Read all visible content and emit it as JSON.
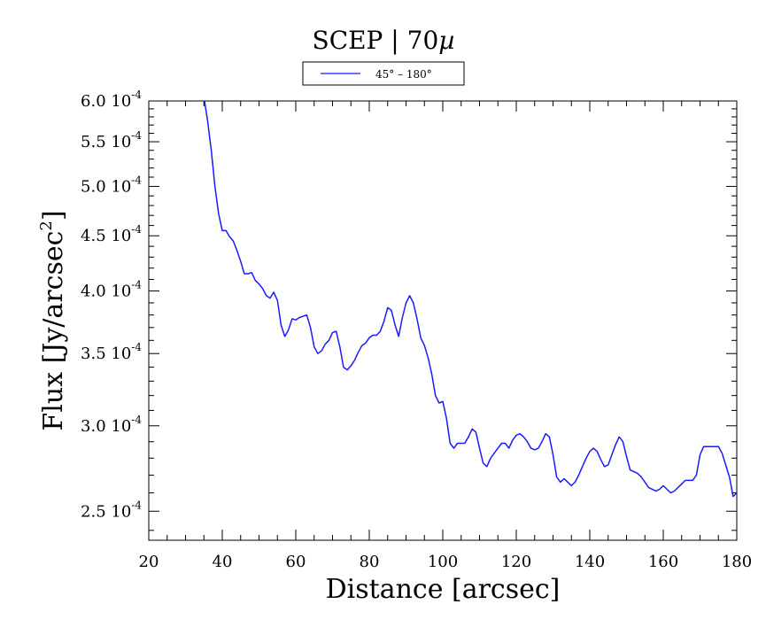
{
  "chart_data": {
    "type": "line",
    "title": "SCEP | 70",
    "title_symbol": "µ",
    "xlabel": "Distance [arcsec]",
    "ylabel": "Flux [Jy/arcsec",
    "ylabel_sup": "2",
    "ylabel_close": "]",
    "xlim": [
      20,
      180
    ],
    "ylim": [
      0.000235,
      0.0006
    ],
    "yscale": "log",
    "x_ticks": [
      20,
      40,
      60,
      80,
      100,
      120,
      140,
      160,
      180
    ],
    "x_tick_labels": [
      "20",
      "40",
      "60",
      "80",
      "100",
      "120",
      "140",
      "160",
      "180"
    ],
    "y_ticks": [
      {
        "value": 0.00025,
        "mantissa": "2.5 10",
        "exponent": "-4"
      },
      {
        "value": 0.0003,
        "mantissa": "3.0 10",
        "exponent": "-4"
      },
      {
        "value": 0.00035,
        "mantissa": "3.5 10",
        "exponent": "-4"
      },
      {
        "value": 0.0004,
        "mantissa": "4.0 10",
        "exponent": "-4"
      },
      {
        "value": 0.00045,
        "mantissa": "4.5 10",
        "exponent": "-4"
      },
      {
        "value": 0.0005,
        "mantissa": "5.0 10",
        "exponent": "-4"
      },
      {
        "value": 0.00055,
        "mantissa": "5.5 10",
        "exponent": "-4"
      },
      {
        "value": 0.0006,
        "mantissa": "6.0 10",
        "exponent": "-4"
      }
    ],
    "legend": {
      "position": "top-center",
      "label": "45° – 180°"
    },
    "series": [
      {
        "name": "45° – 180°",
        "color": "#1a1aff",
        "x": [
          35,
          36,
          37,
          38,
          39,
          40,
          41,
          42,
          43,
          44,
          45,
          46,
          47,
          48,
          49,
          50,
          51,
          52,
          53,
          54,
          55,
          56,
          57,
          58,
          59,
          60,
          61,
          62,
          63,
          64,
          65,
          66,
          67,
          68,
          69,
          70,
          71,
          72,
          73,
          74,
          75,
          76,
          77,
          78,
          79,
          80,
          81,
          82,
          83,
          84,
          85,
          86,
          87,
          88,
          89,
          90,
          91,
          92,
          93,
          94,
          95,
          96,
          97,
          98,
          99,
          100,
          101,
          102,
          103,
          104,
          105,
          106,
          107,
          108,
          109,
          110,
          111,
          112,
          113,
          114,
          115,
          116,
          117,
          118,
          119,
          120,
          121,
          122,
          123,
          124,
          125,
          126,
          127,
          128,
          129,
          130,
          131,
          132,
          133,
          134,
          135,
          136,
          137,
          138,
          139,
          140,
          141,
          142,
          143,
          144,
          145,
          146,
          147,
          148,
          149,
          150,
          151,
          152,
          153,
          154,
          155,
          156,
          157,
          158,
          159,
          160,
          161,
          162,
          163,
          164,
          165,
          166,
          167,
          168,
          169,
          170,
          171,
          172,
          173,
          174,
          175,
          176,
          177,
          178,
          179,
          180
        ],
        "values": [
          0.000605,
          0.000575,
          0.00054,
          0.0005,
          0.000472,
          0.000455,
          0.000455,
          0.000449,
          0.000445,
          0.000436,
          0.000426,
          0.000415,
          0.000415,
          0.000416,
          0.000409,
          0.000406,
          0.000402,
          0.000396,
          0.000394,
          0.000399,
          0.000392,
          0.000372,
          0.000363,
          0.000368,
          0.000377,
          0.000376,
          0.000378,
          0.000379,
          0.00038,
          0.00037,
          0.000355,
          0.00035,
          0.000352,
          0.000357,
          0.00036,
          0.000366,
          0.000367,
          0.000355,
          0.00034,
          0.000338,
          0.000341,
          0.000345,
          0.000351,
          0.000356,
          0.000358,
          0.000362,
          0.000364,
          0.000364,
          0.000367,
          0.000375,
          0.000386,
          0.000384,
          0.000372,
          0.000363,
          0.000378,
          0.00039,
          0.000396,
          0.00039,
          0.000377,
          0.000362,
          0.000356,
          0.000347,
          0.000335,
          0.00032,
          0.000315,
          0.000316,
          0.000305,
          0.000289,
          0.000286,
          0.000289,
          0.000289,
          0.000289,
          0.000293,
          0.000298,
          0.000296,
          0.000286,
          0.000277,
          0.000275,
          0.00028,
          0.000283,
          0.000286,
          0.000289,
          0.000289,
          0.000286,
          0.000291,
          0.000294,
          0.000295,
          0.000293,
          0.00029,
          0.000286,
          0.000285,
          0.000286,
          0.00029,
          0.000295,
          0.000293,
          0.000282,
          0.000269,
          0.000266,
          0.000268,
          0.000266,
          0.000264,
          0.000266,
          0.00027,
          0.000275,
          0.00028,
          0.000284,
          0.000286,
          0.000284,
          0.000279,
          0.000275,
          0.000276,
          0.000282,
          0.000288,
          0.000293,
          0.00029,
          0.000281,
          0.000273,
          0.000272,
          0.000271,
          0.000269,
          0.000266,
          0.000263,
          0.000262,
          0.000261,
          0.000262,
          0.000264,
          0.000262,
          0.00026,
          0.000261,
          0.000263,
          0.000265,
          0.000267,
          0.000267,
          0.000267,
          0.00027,
          0.000282,
          0.000287,
          0.000287,
          0.000287,
          0.000287,
          0.000287,
          0.000283,
          0.000276,
          0.000269,
          0.000258,
          0.00026
        ]
      }
    ]
  }
}
